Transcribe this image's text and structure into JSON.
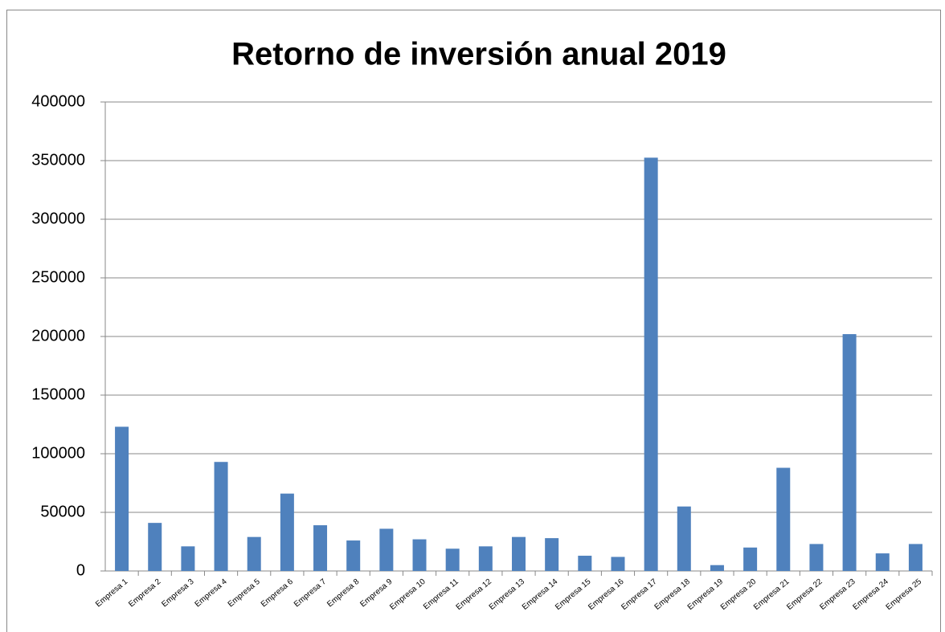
{
  "chart_data": {
    "type": "bar",
    "title": "Retorno de inversión anual 2019",
    "categories": [
      "Empresa 1",
      "Empresa 2",
      "Empresa 3",
      "Empresa 4",
      "Empresa 5",
      "Empresa 6",
      "Empresa 7",
      "Empresa 8",
      "Empresa 9",
      "Empresa 10",
      "Empresa 11",
      "Empresa 12",
      "Empresa 13",
      "Empresa 14",
      "Empresa 15",
      "Empresa 16",
      "Empresa 17",
      "Empresa 18",
      "Empresa 19",
      "Empresa 20",
      "Empresa 21",
      "Empresa 22",
      "Empresa 23",
      "Empresa 24",
      "Empresa 25"
    ],
    "values": [
      123000,
      41000,
      21000,
      93000,
      29000,
      66000,
      39000,
      26000,
      36000,
      27000,
      19000,
      21000,
      29000,
      28000,
      13000,
      12000,
      352500,
      55000,
      5000,
      20000,
      88000,
      23000,
      202000,
      15000,
      23000
    ],
    "color": "#4f81bd",
    "ylim": [
      0,
      400000
    ],
    "yticks": [
      0,
      50000,
      100000,
      150000,
      200000,
      250000,
      300000,
      350000,
      400000
    ],
    "grid": true
  }
}
